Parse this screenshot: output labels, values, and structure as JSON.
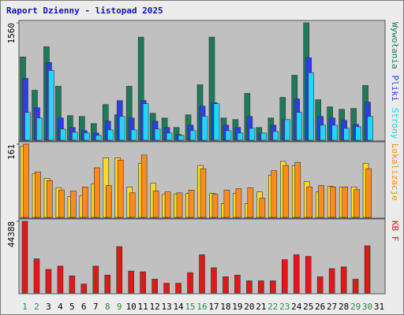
{
  "chart_data": [
    {
      "type": "bar",
      "title": "Raport Dzienny -  listopad 2025",
      "ylim": [
        0,
        1560
      ],
      "yticks": [
        1560
      ],
      "series": [
        {
          "name": "Wywołania",
          "color": "#1e7a5a",
          "values": [
            1107,
            664,
            1243,
            717,
            327,
            316,
            221,
            474,
            337,
            717,
            1370,
            358,
            295,
            169,
            337,
            738,
            1370,
            295,
            274,
            622,
            169,
            295,
            569,
            864,
            1560,
            538,
            443,
            411,
            422,
            727,
            null
          ]
        },
        {
          "name": "Pliki",
          "color": "#2a40e0",
          "values": [
            822,
            432,
            1033,
            295,
            169,
            127,
            95,
            253,
            527,
            295,
            527,
            253,
            169,
            74,
            200,
            453,
            500,
            200,
            169,
            316,
            95,
            200,
            274,
            548,
            1096,
            316,
            295,
            264,
            211,
            506,
            null
          ]
        },
        {
          "name": "Strony",
          "color": "#22d4ff",
          "values": [
            369,
            295,
            927,
            148,
            106,
            95,
            63,
            137,
            316,
            137,
            485,
            148,
            95,
            63,
            127,
            316,
            485,
            127,
            95,
            158,
            95,
            116,
            274,
            369,
            896,
            200,
            200,
            158,
            179,
            316,
            null
          ]
        }
      ]
    },
    {
      "type": "bar",
      "ylim": [
        0,
        161
      ],
      "yticks": [
        161
      ],
      "series": [
        {
          "color": "#ffd820",
          "values": [
            156,
            96,
            86,
            65,
            46,
            47,
            74,
            131,
            131,
            67,
            119,
            75,
            51,
            51,
            53,
            114,
            53,
            30,
            53,
            30,
            56,
            93,
            123,
            114,
            79,
            56,
            68,
            67,
            67,
            119,
            null
          ]
        },
        {
          "name": "Lokalizacje",
          "color": "#ff8c1a",
          "values": [
            161,
            100,
            81,
            60,
            58,
            67,
            109,
            70,
            126,
            54,
            137,
            58,
            56,
            54,
            60,
            107,
            51,
            60,
            63,
            65,
            42,
            103,
            114,
            121,
            67,
            70,
            67,
            67,
            61,
            107,
            null
          ]
        }
      ]
    },
    {
      "type": "bar",
      "ylim": [
        0,
        44388
      ],
      "yticks": [
        44388
      ],
      "categories": [
        "1",
        "2",
        "3",
        "4",
        "5",
        "6",
        "7",
        "8",
        "9",
        "10",
        "11",
        "12",
        "13",
        "14",
        "15",
        "16",
        "17",
        "18",
        "19",
        "20",
        "21",
        "22",
        "23",
        "24",
        "25",
        "26",
        "27",
        "28",
        "29",
        "30",
        "31"
      ],
      "category_colors": [
        "#2a8a4a",
        "#2a8a4a",
        "#000000",
        "#000000",
        "#000000",
        "#000000",
        "#000000",
        "#2a8a4a",
        "#2a8a4a",
        "#000000",
        "#000000",
        "#000000",
        "#000000",
        "#000000",
        "#2a8a4a",
        "#2a8a4a",
        "#000000",
        "#000000",
        "#000000",
        "#000000",
        "#000000",
        "#2a8a4a",
        "#2a8a4a",
        "#000000",
        "#000000",
        "#000000",
        "#000000",
        "#000000",
        "#2a8a4a",
        "#2a8a4a",
        "#000000"
      ],
      "series": [
        {
          "name": "KB F",
          "color": "#e01818",
          "values": [
            44388,
            21168,
            14616,
            16632,
            10584,
            5544,
            16632,
            11088,
            28728,
            13608,
            13104,
            8568,
            6048,
            6048,
            12600,
            23688,
            15624,
            10080,
            11088,
            7560,
            7560,
            7560,
            20664,
            23688,
            22680,
            10080,
            15120,
            16128,
            8568,
            29232,
            null
          ]
        }
      ]
    }
  ]
}
